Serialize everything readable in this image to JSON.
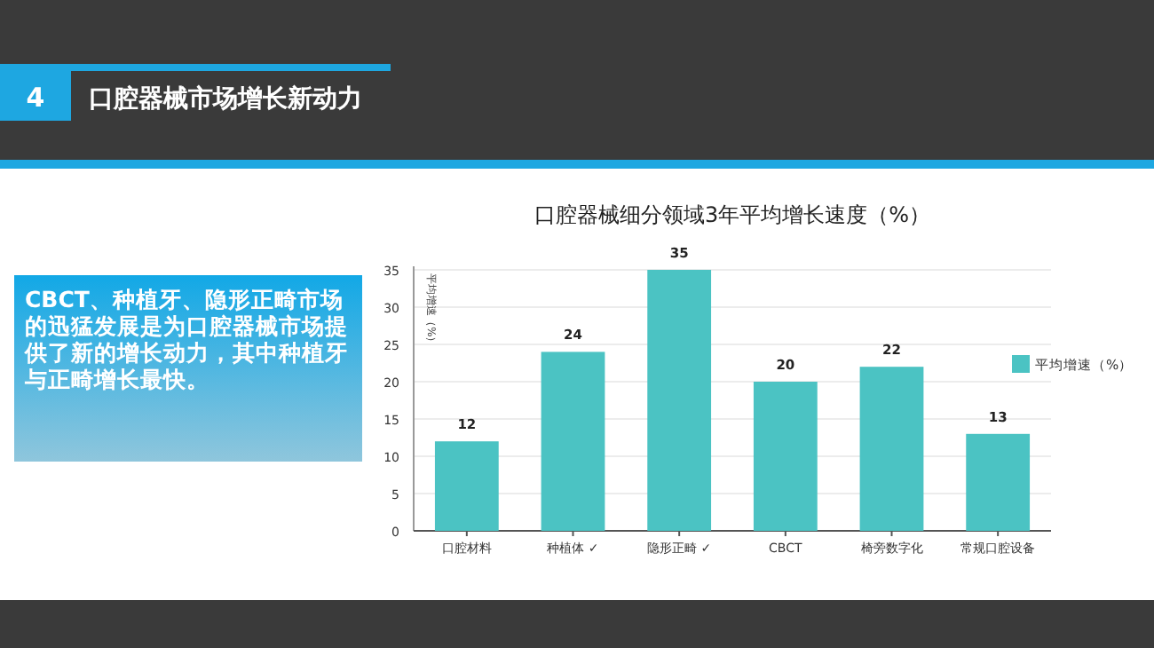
{
  "chart_data": {
    "type": "bar",
    "title": "口腔器械细分领域3年平均增长速度（%）",
    "ylabel": "平均增速（%）",
    "annotations": [
      "4",
      "口腔器械市场增长新动力",
      "CBCT、种植牙、隐形正畸市场的迅猛发展是为口腔器械市场提供了新的增长动力，其中种植牙与正畸增长最快。"
    ],
    "categories": [
      "口腔材料",
      "种植体 ✓",
      "隐形正畸 ✓",
      "CBCT",
      "椅旁数字化",
      "常规口腔设备"
    ],
    "series": [
      {
        "name": "平均增速（%）",
        "color": "#4bc3c3",
        "values": [
          12,
          24,
          35,
          20,
          22,
          13
        ]
      }
    ],
    "ylim": [
      0,
      35
    ],
    "yticks": [
      0,
      5,
      10,
      15,
      20,
      25,
      30,
      35
    ],
    "grid": "y",
    "legend": "right",
    "data_labels": true
  }
}
